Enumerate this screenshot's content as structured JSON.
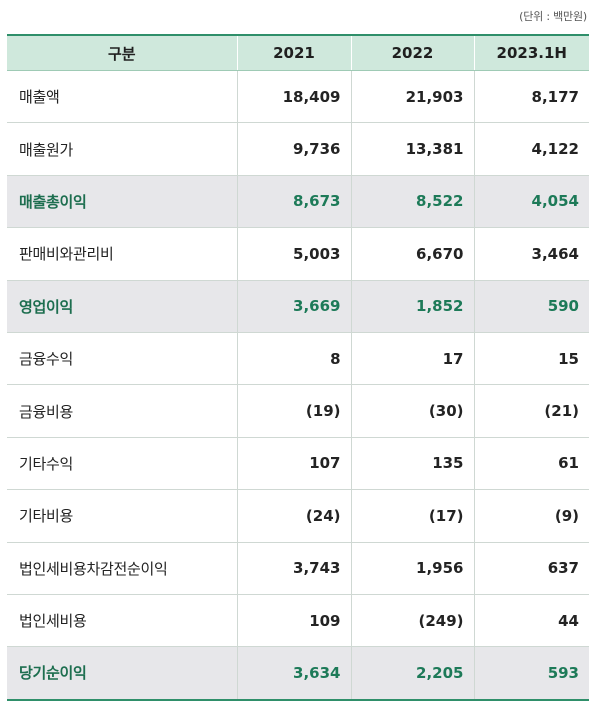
{
  "unit_label": "(단위 : 백만원)",
  "table": {
    "headers": [
      "구분",
      "2021",
      "2022",
      "2023.1H"
    ],
    "rows": [
      {
        "label": "매출액",
        "values": [
          "18,409",
          "21,903",
          "8,177"
        ],
        "highlight": false
      },
      {
        "label": "매출원가",
        "values": [
          "9,736",
          "13,381",
          "4,122"
        ],
        "highlight": false
      },
      {
        "label": "매출총이익",
        "values": [
          "8,673",
          "8,522",
          "4,054"
        ],
        "highlight": true
      },
      {
        "label": "판매비와관리비",
        "values": [
          "5,003",
          "6,670",
          "3,464"
        ],
        "highlight": false
      },
      {
        "label": "영업이익",
        "values": [
          "3,669",
          "1,852",
          "590"
        ],
        "highlight": true
      },
      {
        "label": "금융수익",
        "values": [
          "8",
          "17",
          "15"
        ],
        "highlight": false
      },
      {
        "label": "금융비용",
        "values": [
          "(19)",
          "(30)",
          "(21)"
        ],
        "highlight": false
      },
      {
        "label": "기타수익",
        "values": [
          "107",
          "135",
          "61"
        ],
        "highlight": false
      },
      {
        "label": "기타비용",
        "values": [
          "(24)",
          "(17)",
          "(9)"
        ],
        "highlight": false
      },
      {
        "label": "법인세비용차감전순이익",
        "values": [
          "3,743",
          "1,956",
          "637"
        ],
        "highlight": false
      },
      {
        "label": "법인세비용",
        "values": [
          "109",
          "(249)",
          "44"
        ],
        "highlight": false
      },
      {
        "label": "당기순이익",
        "values": [
          "3,634",
          "2,205",
          "593"
        ],
        "highlight": true
      }
    ],
    "colors": {
      "header_bg": "#cfe8dc",
      "highlight_bg": "#e7e7ea",
      "highlight_text": "#1d7a58",
      "rule": "#2f8f6a"
    }
  }
}
